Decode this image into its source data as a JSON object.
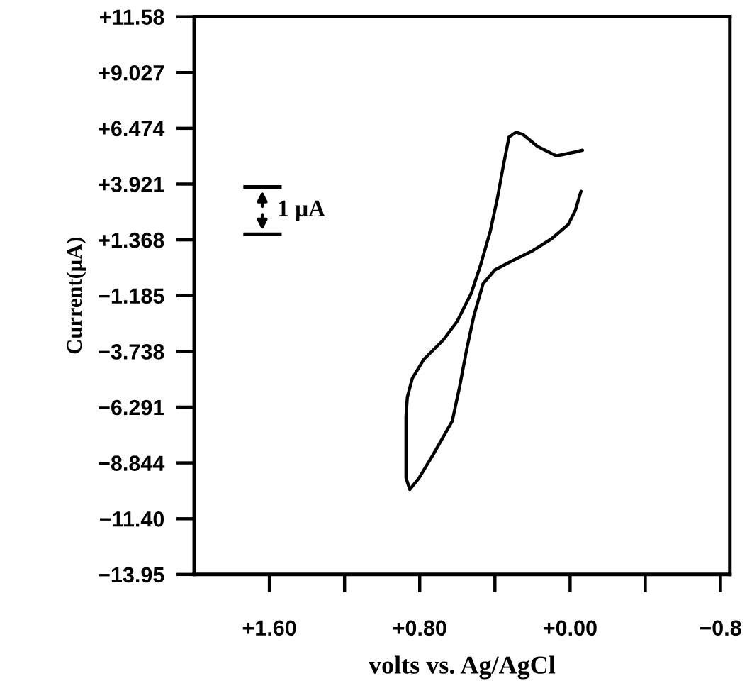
{
  "chart_data": {
    "type": "line",
    "xlabel": "volts vs. Ag/AgCl",
    "ylabel": "Current(μA)",
    "xlim": [
      2.0,
      -0.85
    ],
    "ylim": [
      -13.95,
      11.58
    ],
    "xticks": [
      {
        "value": 1.6,
        "label": "+1.60"
      },
      {
        "value": 1.2,
        "label": null
      },
      {
        "value": 0.8,
        "label": "+0.80"
      },
      {
        "value": 0.4,
        "label": null
      },
      {
        "value": 0.0,
        "label": "+0.00"
      },
      {
        "value": -0.4,
        "label": null
      },
      {
        "value": -0.8,
        "label": "−0.8"
      }
    ],
    "yticks": [
      {
        "value": 11.58,
        "label": "+11.58"
      },
      {
        "value": 9.027,
        "label": "+9.027"
      },
      {
        "value": 6.474,
        "label": "+6.474"
      },
      {
        "value": 3.921,
        "label": "+3.921"
      },
      {
        "value": 1.368,
        "label": "+1.368"
      },
      {
        "value": -1.185,
        "label": "−1.185"
      },
      {
        "value": -3.738,
        "label": "−3.738"
      },
      {
        "value": -6.291,
        "label": "−6.291"
      },
      {
        "value": -8.844,
        "label": "−8.844"
      },
      {
        "value": -11.4,
        "label": "−11.40"
      },
      {
        "value": -13.95,
        "label": "−13.95"
      }
    ],
    "grid": false,
    "marker": "none",
    "line_style": "solid",
    "annotations": [
      "1 μA"
    ],
    "series": [
      {
        "color": "#000000",
        "x": [
          -0.066,
          -0.028,
          0.073,
          0.174,
          0.249,
          0.287,
          0.325,
          0.355,
          0.387,
          0.425,
          0.476,
          0.526,
          0.602,
          0.677,
          0.778,
          0.84,
          0.866,
          0.873,
          0.873,
          0.853,
          0.803,
          0.727,
          0.627,
          0.589,
          0.551,
          0.513,
          0.463,
          0.4,
          0.325,
          0.199,
          0.098,
          0.01,
          -0.028,
          -0.058
        ],
        "values": [
          5.47,
          5.39,
          5.21,
          5.65,
          6.18,
          6.3,
          6.07,
          4.77,
          3.26,
          1.75,
          0.22,
          -1.08,
          -2.38,
          -3.24,
          -4.1,
          -4.98,
          -5.84,
          -6.71,
          -9.53,
          -10.06,
          -9.53,
          -8.44,
          -6.93,
          -5.41,
          -3.68,
          -2.15,
          -0.64,
          -0.01,
          0.33,
          0.87,
          1.42,
          2.07,
          2.72,
          3.59
        ]
      }
    ]
  }
}
